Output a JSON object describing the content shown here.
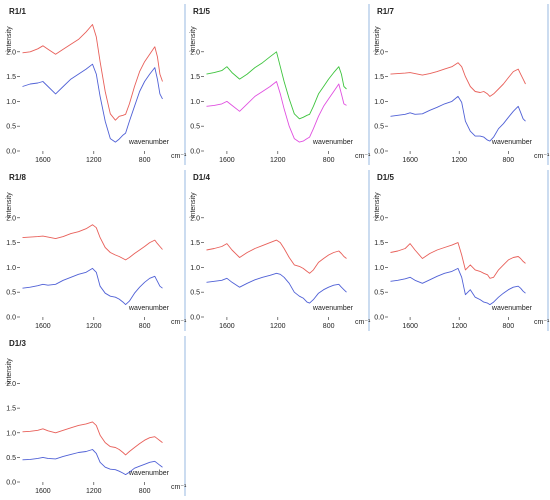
{
  "figure": {
    "x_unit": "cm⁻¹",
    "x_label": "wavenumber",
    "y_label": "intensity",
    "divider_color": "#a9c4e6"
  },
  "chart_data": [
    {
      "type": "line",
      "title": "R1/1",
      "xlabel": "wavenumber",
      "ylabel": "intensity",
      "xlim": [
        1780,
        640
      ],
      "ylim": [
        0,
        2.6
      ],
      "xticks": [
        1600,
        1200,
        800
      ],
      "yticks": [
        0.0,
        0.5,
        1.0,
        1.5,
        2.0
      ],
      "grid": false,
      "series": [
        {
          "color": "#e8605a",
          "x": [
            1760,
            1700,
            1640,
            1600,
            1560,
            1500,
            1440,
            1380,
            1320,
            1260,
            1210,
            1180,
            1150,
            1110,
            1070,
            1030,
            1000,
            970,
            950,
            920,
            880,
            840,
            800,
            760,
            720,
            700,
            680,
            660
          ],
          "y": [
            1.98,
            2.0,
            2.06,
            2.12,
            2.05,
            1.95,
            2.05,
            2.15,
            2.25,
            2.4,
            2.55,
            2.3,
            1.8,
            1.2,
            0.75,
            0.62,
            0.7,
            0.72,
            0.74,
            0.95,
            1.3,
            1.6,
            1.8,
            1.95,
            2.1,
            1.9,
            1.55,
            1.4
          ]
        },
        {
          "color": "#5061d6",
          "x": [
            1760,
            1700,
            1640,
            1600,
            1560,
            1500,
            1440,
            1380,
            1320,
            1260,
            1210,
            1180,
            1150,
            1110,
            1070,
            1030,
            1000,
            970,
            950,
            920,
            880,
            840,
            800,
            760,
            720,
            700,
            680,
            660
          ],
          "y": [
            1.3,
            1.35,
            1.37,
            1.4,
            1.3,
            1.15,
            1.3,
            1.45,
            1.55,
            1.65,
            1.75,
            1.55,
            1.1,
            0.6,
            0.25,
            0.18,
            0.24,
            0.32,
            0.36,
            0.6,
            0.9,
            1.2,
            1.4,
            1.55,
            1.68,
            1.45,
            1.15,
            1.05
          ]
        }
      ]
    },
    {
      "type": "line",
      "title": "R1/5",
      "xlabel": "wavenumber",
      "ylabel": "intensity",
      "xlim": [
        1780,
        640
      ],
      "ylim": [
        0,
        2.6
      ],
      "xticks": [
        1600,
        1200,
        800
      ],
      "yticks": [
        0.0,
        0.5,
        1.0,
        1.5,
        2.0
      ],
      "grid": false,
      "series": [
        {
          "color": "#3ec43e",
          "x": [
            1760,
            1700,
            1640,
            1600,
            1560,
            1500,
            1440,
            1380,
            1320,
            1260,
            1210,
            1180,
            1150,
            1110,
            1070,
            1030,
            1000,
            970,
            950,
            920,
            880,
            840,
            800,
            760,
            720,
            700,
            680,
            660
          ],
          "y": [
            1.55,
            1.58,
            1.62,
            1.7,
            1.58,
            1.45,
            1.55,
            1.68,
            1.78,
            1.9,
            2.0,
            1.7,
            1.4,
            1.05,
            0.75,
            0.65,
            0.68,
            0.72,
            0.74,
            0.9,
            1.15,
            1.3,
            1.45,
            1.58,
            1.7,
            1.55,
            1.3,
            1.25
          ]
        },
        {
          "color": "#e050e0",
          "x": [
            1760,
            1700,
            1640,
            1600,
            1560,
            1500,
            1440,
            1380,
            1320,
            1260,
            1210,
            1180,
            1150,
            1110,
            1070,
            1030,
            1000,
            970,
            950,
            920,
            880,
            840,
            800,
            760,
            720,
            700,
            680,
            660
          ],
          "y": [
            0.9,
            0.92,
            0.95,
            1.0,
            0.92,
            0.8,
            0.95,
            1.1,
            1.2,
            1.3,
            1.4,
            1.15,
            0.85,
            0.5,
            0.25,
            0.18,
            0.2,
            0.25,
            0.28,
            0.45,
            0.7,
            0.9,
            1.05,
            1.2,
            1.35,
            1.15,
            0.95,
            0.92
          ]
        }
      ]
    },
    {
      "type": "line",
      "title": "R1/7",
      "xlabel": "wavenumber",
      "ylabel": "intensity",
      "xlim": [
        1780,
        640
      ],
      "ylim": [
        0,
        2.6
      ],
      "xticks": [
        1600,
        1200,
        800
      ],
      "yticks": [
        0.0,
        0.5,
        1.0,
        1.5,
        2.0
      ],
      "grid": false,
      "series": [
        {
          "color": "#e8605a",
          "x": [
            1760,
            1700,
            1640,
            1600,
            1560,
            1500,
            1440,
            1380,
            1320,
            1260,
            1210,
            1180,
            1150,
            1110,
            1070,
            1030,
            1000,
            970,
            950,
            920,
            880,
            840,
            800,
            760,
            720,
            700,
            680,
            660
          ],
          "y": [
            1.55,
            1.56,
            1.57,
            1.58,
            1.56,
            1.53,
            1.56,
            1.6,
            1.65,
            1.7,
            1.78,
            1.7,
            1.5,
            1.3,
            1.2,
            1.18,
            1.2,
            1.15,
            1.1,
            1.15,
            1.25,
            1.35,
            1.48,
            1.6,
            1.65,
            1.55,
            1.45,
            1.35
          ]
        },
        {
          "color": "#5061d6",
          "x": [
            1760,
            1700,
            1640,
            1600,
            1560,
            1500,
            1440,
            1380,
            1320,
            1260,
            1210,
            1180,
            1150,
            1110,
            1070,
            1030,
            1000,
            970,
            950,
            920,
            880,
            840,
            800,
            760,
            720,
            700,
            680,
            660
          ],
          "y": [
            0.7,
            0.72,
            0.74,
            0.77,
            0.74,
            0.75,
            0.82,
            0.88,
            0.95,
            1.0,
            1.1,
            0.98,
            0.6,
            0.4,
            0.3,
            0.3,
            0.28,
            0.22,
            0.2,
            0.28,
            0.45,
            0.55,
            0.68,
            0.8,
            0.9,
            0.78,
            0.65,
            0.6
          ]
        }
      ]
    },
    {
      "type": "line",
      "title": "R1/8",
      "xlabel": "wavenumber",
      "ylabel": "intensity",
      "xlim": [
        1780,
        640
      ],
      "ylim": [
        0,
        2.6
      ],
      "xticks": [
        1600,
        1200,
        800
      ],
      "yticks": [
        0.0,
        0.5,
        1.0,
        1.5,
        2.0
      ],
      "grid": false,
      "series": [
        {
          "color": "#e8605a",
          "x": [
            1760,
            1700,
            1640,
            1600,
            1560,
            1500,
            1440,
            1380,
            1320,
            1260,
            1210,
            1180,
            1150,
            1110,
            1070,
            1030,
            1000,
            970,
            950,
            920,
            880,
            840,
            800,
            760,
            720,
            700,
            680,
            660
          ],
          "y": [
            1.6,
            1.61,
            1.62,
            1.63,
            1.61,
            1.58,
            1.62,
            1.68,
            1.72,
            1.78,
            1.86,
            1.8,
            1.6,
            1.4,
            1.3,
            1.25,
            1.22,
            1.18,
            1.15,
            1.2,
            1.28,
            1.35,
            1.42,
            1.5,
            1.55,
            1.48,
            1.42,
            1.36
          ]
        },
        {
          "color": "#5061d6",
          "x": [
            1760,
            1700,
            1640,
            1600,
            1560,
            1500,
            1440,
            1380,
            1320,
            1260,
            1210,
            1180,
            1150,
            1110,
            1070,
            1030,
            1000,
            970,
            950,
            920,
            880,
            840,
            800,
            760,
            720,
            700,
            680,
            660
          ],
          "y": [
            0.58,
            0.6,
            0.63,
            0.66,
            0.64,
            0.66,
            0.74,
            0.8,
            0.86,
            0.9,
            0.98,
            0.9,
            0.62,
            0.48,
            0.42,
            0.4,
            0.36,
            0.3,
            0.25,
            0.32,
            0.48,
            0.6,
            0.7,
            0.78,
            0.82,
            0.72,
            0.62,
            0.58
          ]
        }
      ]
    },
    {
      "type": "line",
      "title": "D1/4",
      "xlabel": "wavenumber",
      "ylabel": "intensity",
      "xlim": [
        1780,
        640
      ],
      "ylim": [
        0,
        2.6
      ],
      "xticks": [
        1600,
        1200,
        800
      ],
      "yticks": [
        0.0,
        0.5,
        1.0,
        1.5,
        2.0
      ],
      "grid": false,
      "series": [
        {
          "color": "#e8605a",
          "x": [
            1760,
            1700,
            1640,
            1600,
            1560,
            1500,
            1440,
            1380,
            1320,
            1260,
            1210,
            1180,
            1150,
            1110,
            1070,
            1030,
            1000,
            970,
            950,
            920,
            880,
            840,
            800,
            760,
            720,
            700,
            680,
            660
          ],
          "y": [
            1.35,
            1.38,
            1.42,
            1.48,
            1.35,
            1.2,
            1.3,
            1.38,
            1.44,
            1.5,
            1.55,
            1.5,
            1.38,
            1.2,
            1.05,
            1.02,
            0.98,
            0.92,
            0.88,
            0.95,
            1.1,
            1.18,
            1.25,
            1.3,
            1.33,
            1.28,
            1.22,
            1.18
          ]
        },
        {
          "color": "#5061d6",
          "x": [
            1760,
            1700,
            1640,
            1600,
            1560,
            1500,
            1440,
            1380,
            1320,
            1260,
            1210,
            1180,
            1150,
            1110,
            1070,
            1030,
            1000,
            970,
            950,
            920,
            880,
            840,
            800,
            760,
            720,
            700,
            680,
            660
          ],
          "y": [
            0.7,
            0.72,
            0.74,
            0.78,
            0.7,
            0.6,
            0.68,
            0.75,
            0.8,
            0.84,
            0.88,
            0.86,
            0.8,
            0.68,
            0.5,
            0.42,
            0.38,
            0.3,
            0.28,
            0.35,
            0.48,
            0.55,
            0.6,
            0.64,
            0.66,
            0.6,
            0.55,
            0.5
          ]
        }
      ]
    },
    {
      "type": "line",
      "title": "D1/5",
      "xlabel": "wavenumber",
      "ylabel": "intensity",
      "xlim": [
        1780,
        640
      ],
      "ylim": [
        0,
        2.6
      ],
      "xticks": [
        1600,
        1200,
        800
      ],
      "yticks": [
        0.0,
        0.5,
        1.0,
        1.5,
        2.0
      ],
      "grid": false,
      "series": [
        {
          "color": "#e8605a",
          "x": [
            1760,
            1700,
            1640,
            1600,
            1560,
            1500,
            1440,
            1380,
            1320,
            1260,
            1210,
            1180,
            1150,
            1110,
            1070,
            1030,
            1000,
            970,
            950,
            920,
            880,
            840,
            800,
            760,
            720,
            700,
            680,
            660
          ],
          "y": [
            1.3,
            1.33,
            1.38,
            1.48,
            1.35,
            1.18,
            1.28,
            1.35,
            1.4,
            1.45,
            1.5,
            1.25,
            0.95,
            1.05,
            0.95,
            0.92,
            0.88,
            0.85,
            0.78,
            0.8,
            0.95,
            1.05,
            1.15,
            1.2,
            1.22,
            1.18,
            1.12,
            1.08
          ]
        },
        {
          "color": "#5061d6",
          "x": [
            1760,
            1700,
            1640,
            1600,
            1560,
            1500,
            1440,
            1380,
            1320,
            1260,
            1210,
            1180,
            1150,
            1110,
            1070,
            1030,
            1000,
            970,
            950,
            920,
            880,
            840,
            800,
            760,
            720,
            700,
            680,
            660
          ],
          "y": [
            0.72,
            0.74,
            0.77,
            0.8,
            0.74,
            0.68,
            0.75,
            0.82,
            0.88,
            0.92,
            0.98,
            0.8,
            0.45,
            0.55,
            0.4,
            0.35,
            0.3,
            0.28,
            0.25,
            0.3,
            0.4,
            0.48,
            0.55,
            0.6,
            0.62,
            0.58,
            0.52,
            0.48
          ]
        }
      ]
    },
    {
      "type": "line",
      "title": "D1/3",
      "xlabel": "wavenumber",
      "ylabel": "intensity",
      "xlim": [
        1780,
        640
      ],
      "ylim": [
        0,
        2.6
      ],
      "xticks": [
        1600,
        1200,
        800
      ],
      "yticks": [
        0.0,
        0.5,
        1.0,
        1.5,
        2.0
      ],
      "grid": false,
      "series": [
        {
          "color": "#e8605a",
          "x": [
            1760,
            1700,
            1640,
            1600,
            1560,
            1500,
            1440,
            1380,
            1320,
            1260,
            1210,
            1180,
            1150,
            1110,
            1070,
            1030,
            1000,
            970,
            950,
            920,
            880,
            840,
            800,
            760,
            720,
            700,
            680,
            660
          ],
          "y": [
            1.02,
            1.03,
            1.05,
            1.08,
            1.04,
            1.0,
            1.05,
            1.1,
            1.15,
            1.18,
            1.22,
            1.15,
            0.95,
            0.8,
            0.72,
            0.7,
            0.66,
            0.6,
            0.55,
            0.62,
            0.7,
            0.78,
            0.85,
            0.9,
            0.92,
            0.88,
            0.84,
            0.8
          ]
        },
        {
          "color": "#5061d6",
          "x": [
            1760,
            1700,
            1640,
            1600,
            1560,
            1500,
            1440,
            1380,
            1320,
            1260,
            1210,
            1180,
            1150,
            1110,
            1070,
            1030,
            1000,
            970,
            950,
            920,
            880,
            840,
            800,
            760,
            720,
            700,
            680,
            660
          ],
          "y": [
            0.45,
            0.46,
            0.48,
            0.5,
            0.48,
            0.47,
            0.52,
            0.56,
            0.6,
            0.62,
            0.66,
            0.58,
            0.4,
            0.3,
            0.26,
            0.25,
            0.22,
            0.18,
            0.15,
            0.2,
            0.28,
            0.32,
            0.36,
            0.4,
            0.42,
            0.38,
            0.34,
            0.3
          ]
        }
      ]
    }
  ]
}
